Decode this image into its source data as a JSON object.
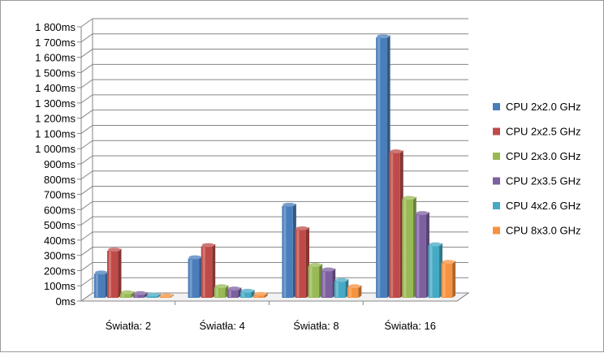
{
  "chart_data": {
    "type": "bar",
    "categories": [
      "Światła: 2",
      "Światła: 4",
      "Światła: 8",
      "Światła: 16"
    ],
    "series": [
      {
        "name": "CPU 2x2.0 GHz",
        "color": "#4a7ebb",
        "values": [
          180,
          280,
          625,
          1730
        ]
      },
      {
        "name": "CPU 2x2.5 GHz",
        "color": "#be4b48",
        "values": [
          330,
          360,
          470,
          975
        ]
      },
      {
        "name": "CPU 2x3.0 GHz",
        "color": "#98b954",
        "values": [
          50,
          90,
          230,
          670
        ]
      },
      {
        "name": "CPU 2x3.5 GHz",
        "color": "#7d60a0",
        "values": [
          45,
          75,
          200,
          570
        ]
      },
      {
        "name": "CPU 4x2.6 GHz",
        "color": "#46aac5",
        "values": [
          35,
          60,
          130,
          365
        ]
      },
      {
        "name": "CPU 8x3.0 GHz",
        "color": "#f69240",
        "values": [
          30,
          40,
          90,
          250
        ]
      }
    ],
    "ylim": [
      0,
      1800
    ],
    "ytick_step": 100,
    "ytick_labels": [
      "0ms",
      "100ms",
      "200ms",
      "300ms",
      "400ms",
      "500ms",
      "600ms",
      "700ms",
      "800ms",
      "900ms",
      "1 000ms",
      "1 100ms",
      "1 200ms",
      "1 300ms",
      "1 400ms",
      "1 500ms",
      "1 600ms",
      "1 700ms",
      "1 800ms"
    ],
    "grid": true,
    "legend_position": "right",
    "style": "3d-column"
  }
}
